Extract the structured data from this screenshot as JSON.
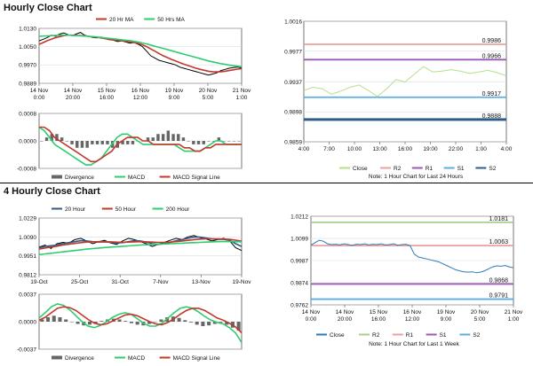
{
  "titles": {
    "hourly": "Hourly Close Chart",
    "four_hourly": "4 Hourly Close Chart"
  },
  "chart_data": [
    {
      "id": "hourly_price",
      "type": "line",
      "x_labels": [
        "14 Nov\n0:00",
        "14 Nov\n20:00",
        "15 Nov\n16:00",
        "16 Nov\n12:00",
        "19 Nov\n9:00",
        "20 Nov\n5:00",
        "21 Nov\n1:00"
      ],
      "y_ticks": [
        1.013,
        1.005,
        0.997,
        0.9889
      ],
      "y_tick_labels": [
        "1.0130",
        "1.0050",
        "0.9970",
        "0.9889"
      ],
      "ylim": [
        0.9889,
        1.013
      ],
      "legend": [
        "20 Hr MA",
        "50 Hrs MA"
      ],
      "series": [
        {
          "name": "Close",
          "color": "#000000",
          "values": [
            1.0075,
            1.0082,
            1.009,
            1.01,
            1.0095,
            1.0105,
            1.011,
            1.0102,
            1.0098,
            1.0105,
            1.0112,
            1.01,
            1.0095,
            1.009,
            1.0088,
            1.0092,
            1.0085,
            1.008,
            1.0078,
            1.0072,
            1.0075,
            1.007,
            1.0065,
            1.0068,
            1.006,
            1.005,
            1.003,
            1.001,
            1.0,
            0.999,
            0.9985,
            0.998,
            0.9975,
            0.997,
            0.996,
            0.9955,
            0.995,
            0.9945,
            0.994,
            0.9935,
            0.993,
            0.9925,
            0.993,
            0.9935,
            0.9945,
            0.995,
            0.9955,
            0.9958,
            0.996,
            0.9956
          ]
        },
        {
          "name": "20 Hr MA",
          "color": "#c0392b",
          "values": [
            1.006,
            1.0068,
            1.0076,
            1.0083,
            1.0089,
            1.0094,
            1.0098,
            1.01,
            1.01,
            1.0099,
            1.0098,
            1.0097,
            1.0095,
            1.0093,
            1.0091,
            1.0088,
            1.0085,
            1.0082,
            1.008,
            1.0078,
            1.0076,
            1.0074,
            1.0071,
            1.0068,
            1.0064,
            1.0058,
            1.005,
            1.004,
            1.003,
            1.002,
            1.001,
            1.0002,
            0.9994,
            0.9987,
            0.998,
            0.9973,
            0.9967,
            0.9961,
            0.9955,
            0.995,
            0.9946,
            0.9942,
            0.994,
            0.9939,
            0.994,
            0.9942,
            0.9945,
            0.9948,
            0.9951,
            0.9953
          ]
        },
        {
          "name": "50 Hrs MA",
          "color": "#2ecc71",
          "values": [
            1.0095,
            1.0096,
            1.0097,
            1.0098,
            1.0099,
            1.01,
            1.01,
            1.01,
            1.0099,
            1.0098,
            1.0097,
            1.0096,
            1.0095,
            1.0094,
            1.0092,
            1.009,
            1.0088,
            1.0086,
            1.0084,
            1.0082,
            1.008,
            1.0078,
            1.0076,
            1.0073,
            1.007,
            1.0066,
            1.0062,
            1.0057,
            1.0052,
            1.0047,
            1.0042,
            1.0037,
            1.0032,
            1.0027,
            1.0022,
            1.0017,
            1.0012,
            1.0007,
            1.0002,
            0.9997,
            0.9992,
            0.9987,
            0.9983,
            0.9979,
            0.9975,
            0.9972,
            0.9969,
            0.9966,
            0.9964,
            0.9962
          ]
        }
      ]
    },
    {
      "id": "hourly_macd",
      "type": "bar",
      "y_ticks": [
        0.0008,
        0.0,
        -0.0008
      ],
      "y_tick_labels": [
        "0.0008",
        "0.0000",
        "-0.0008"
      ],
      "ylim": [
        -0.0008,
        0.0008
      ],
      "legend": [
        "Divergence",
        "MACD",
        "MACD Signal Line"
      ],
      "divergence": [
        0.0,
        0.0001,
        0.0002,
        0.0002,
        0.0001,
        0.0,
        -0.0001,
        -0.0002,
        -0.0002,
        -0.0002,
        -0.0001,
        -0.0001,
        -0.0001,
        -0.0001,
        -0.0002,
        -0.0002,
        -0.0001,
        -0.0001,
        -0.0001,
        0.0,
        0.0,
        0.0001,
        0.0001,
        0.0002,
        0.0002,
        0.0003,
        0.0002,
        0.0002,
        0.0001,
        0.0,
        -0.0001,
        -0.0001,
        -0.0001,
        0.0,
        0.0,
        0.0001,
        0.0,
        0.0,
        0.0,
        0.0
      ],
      "series": [
        {
          "name": "MACD",
          "color": "#2ecc71",
          "values": [
            0.0004,
            0.0003,
            0.0001,
            -0.0001,
            -0.0002,
            -0.0003,
            -0.0004,
            -0.0005,
            -0.0006,
            -0.0007,
            -0.0007,
            -0.0006,
            -0.0005,
            -0.0003,
            -0.0001,
            0.0001,
            0.0002,
            0.0002,
            0.0001,
            0.0,
            -0.0001,
            -0.0001,
            -0.0001,
            -0.0001,
            -0.0001,
            -0.0001,
            -0.0001,
            -0.0002,
            -0.0003,
            -0.0003,
            -0.0003,
            -0.0003,
            -0.0002,
            -0.0001,
            0.0,
            0.0,
            -0.0001,
            -0.0001,
            -0.0001,
            -0.0001
          ]
        },
        {
          "name": "MACD Signal Line",
          "color": "#c0392b",
          "values": [
            0.0004,
            0.0004,
            0.0003,
            0.0001,
            0.0,
            -0.0001,
            -0.0002,
            -0.0003,
            -0.0004,
            -0.0005,
            -0.0006,
            -0.0006,
            -0.0005,
            -0.0004,
            -0.0003,
            -0.0001,
            0.0,
            0.0001,
            0.0001,
            0.0001,
            0.0,
            0.0,
            -0.0001,
            -0.0001,
            -0.0001,
            -0.0001,
            -0.0001,
            -0.0001,
            -0.0002,
            -0.0002,
            -0.0003,
            -0.0003,
            -0.0002,
            -0.0002,
            -0.0001,
            -0.0001,
            -0.0001,
            -0.0001,
            -0.0001,
            -0.0001
          ]
        }
      ]
    },
    {
      "id": "hourly_levels",
      "type": "line",
      "x_labels": [
        "4:00",
        "7:00",
        "10:00",
        "13:00",
        "16:00",
        "19:00",
        "22:00",
        "1:00",
        "4:00"
      ],
      "y_ticks": [
        1.0016,
        0.9977,
        0.9937,
        0.9898,
        0.9859
      ],
      "y_tick_labels": [
        "1.0016",
        "0.9977",
        "0.9937",
        "0.9898",
        "0.9859"
      ],
      "ylim": [
        0.9859,
        1.0016
      ],
      "legend": [
        "Close",
        "R2",
        "R1",
        "S1",
        "S2"
      ],
      "note": "Note: 1 Hour Chart for Last 24 Hours",
      "levels": [
        {
          "name": "R2",
          "value": 0.9986,
          "label": "0.9986",
          "color": "#e8a0a0"
        },
        {
          "name": "R1",
          "value": 0.9966,
          "label": "0.9966",
          "color": "#9b59b6"
        },
        {
          "name": "S1",
          "value": 0.9917,
          "label": "0.9917",
          "color": "#5dade2"
        },
        {
          "name": "S2",
          "value": 0.9888,
          "label": "0.9888",
          "color": "#2e5d8a"
        }
      ],
      "series": [
        {
          "name": "Close",
          "color": "#b5e08a",
          "values": [
            0.9926,
            0.993,
            0.9928,
            0.9921,
            0.9925,
            0.993,
            0.9933,
            0.9926,
            0.9918,
            0.9928,
            0.994,
            0.9937,
            0.9947,
            0.9957,
            0.995,
            0.9951,
            0.9953,
            0.9951,
            0.9948,
            0.995,
            0.9952,
            0.9949,
            0.9945
          ]
        }
      ]
    },
    {
      "id": "four_hourly_price",
      "type": "line",
      "x_labels": [
        "19-Oct",
        "25-Oct",
        "31-Oct",
        "7-Nov",
        "13-Nov",
        "19-Nov"
      ],
      "y_ticks": [
        1.0229,
        1.009,
        0.9951,
        0.9812
      ],
      "y_tick_labels": [
        "1.0229",
        "1.0090",
        "0.9951",
        "0.9812"
      ],
      "ylim": [
        0.9812,
        1.0229
      ],
      "legend": [
        "20 Hour",
        "50 Hour",
        "200 Hour"
      ],
      "series": [
        {
          "name": "Close",
          "color": "#000000",
          "values": [
            1.0015,
            1.003,
            1.0005,
            1.004,
            1.005,
            1.0045,
            1.007,
            1.008,
            1.006,
            1.004,
            1.0055,
            1.0065,
            1.0045,
            1.0035,
            1.006,
            1.008,
            1.007,
            1.0055,
            1.004,
            1.002,
            1.0035,
            1.005,
            1.0065,
            1.008,
            1.007,
            1.009,
            1.01,
            1.0085,
            1.0075,
            1.006,
            1.007,
            1.008,
            1.006,
            1.001,
            0.999
          ]
        },
        {
          "name": "20 Hour",
          "color": "#2e5d8a",
          "values": [
            1.001,
            1.002,
            1.0025,
            1.003,
            1.004,
            1.0048,
            1.0055,
            1.0062,
            1.006,
            1.0055,
            1.0052,
            1.0053,
            1.005,
            1.0045,
            1.0048,
            1.0055,
            1.0062,
            1.006,
            1.0052,
            1.004,
            1.0035,
            1.004,
            1.005,
            1.0062,
            1.007,
            1.008,
            1.0088,
            1.0088,
            1.0082,
            1.0075,
            1.0072,
            1.0072,
            1.0065,
            1.004,
            1.002
          ]
        },
        {
          "name": "50 Hour",
          "color": "#c0392b",
          "values": [
            1.0,
            1.0008,
            1.0015,
            1.0022,
            1.003,
            1.0036,
            1.0042,
            1.0048,
            1.0052,
            1.0054,
            1.0055,
            1.0055,
            1.0054,
            1.0052,
            1.0051,
            1.0052,
            1.0054,
            1.0055,
            1.0054,
            1.0052,
            1.005,
            1.005,
            1.0052,
            1.0056,
            1.006,
            1.0065,
            1.007,
            1.0074,
            1.0076,
            1.0076,
            1.0075,
            1.0074,
            1.0072,
            1.0066,
            1.0058
          ]
        },
        {
          "name": "200 Hour",
          "color": "#2ecc71",
          "values": [
            0.996,
            0.9965,
            0.997,
            0.9975,
            0.998,
            0.9985,
            0.999,
            0.9995,
            1.0,
            1.0004,
            1.0008,
            1.0012,
            1.0015,
            1.0018,
            1.0021,
            1.0024,
            1.0027,
            1.003,
            1.0032,
            1.0034,
            1.0036,
            1.0038,
            1.004,
            1.0042,
            1.0044,
            1.0046,
            1.0048,
            1.005,
            1.0052,
            1.0054,
            1.0055,
            1.0056,
            1.0056,
            1.0055,
            1.0054
          ]
        }
      ]
    },
    {
      "id": "four_hourly_macd",
      "type": "bar",
      "y_ticks": [
        0.0037,
        0.0,
        -0.0037
      ],
      "y_tick_labels": [
        "0.0037",
        "0.0000",
        "-0.0037"
      ],
      "ylim": [
        -0.0037,
        0.0037
      ],
      "legend": [
        "Divergence",
        "MACD",
        "MACD Signal Line"
      ],
      "divergence": [
        0.0003,
        0.0006,
        0.0008,
        0.0006,
        0.0003,
        0.0,
        -0.0003,
        -0.0005,
        -0.0004,
        -0.0002,
        0.0001,
        0.0003,
        0.0004,
        0.0003,
        0.0001,
        -0.0002,
        -0.0004,
        -0.0005,
        -0.0003,
        0.0,
        0.0003,
        0.0006,
        0.0007,
        0.0005,
        0.0002,
        -0.0001,
        -0.0004,
        -0.0006,
        -0.0005,
        -0.0003,
        -0.0001,
        -0.0004,
        -0.0008,
        -0.0012
      ],
      "series": [
        {
          "name": "MACD",
          "color": "#2ecc71",
          "values": [
            0.0005,
            0.0012,
            0.002,
            0.0024,
            0.0022,
            0.0016,
            0.0008,
            0.0,
            -0.0006,
            -0.0008,
            -0.0005,
            0.0,
            0.0006,
            0.001,
            0.0012,
            0.001,
            0.0004,
            -0.0002,
            -0.0006,
            -0.0006,
            -0.0002,
            0.0005,
            0.0012,
            0.0018,
            0.002,
            0.0018,
            0.0013,
            0.0007,
            0.0002,
            -0.0001,
            -0.0003,
            -0.0008,
            -0.0015,
            -0.0028
          ]
        },
        {
          "name": "MACD Signal Line",
          "color": "#c0392b",
          "values": [
            0.0002,
            0.0006,
            0.0012,
            0.0018,
            0.002,
            0.0019,
            0.0015,
            0.0009,
            0.0003,
            -0.0002,
            -0.0004,
            -0.0003,
            0.0001,
            0.0005,
            0.0009,
            0.001,
            0.0008,
            0.0004,
            0.0,
            -0.0003,
            -0.0004,
            -0.0001,
            0.0004,
            0.001,
            0.0015,
            0.0018,
            0.0018,
            0.0015,
            0.001,
            0.0005,
            0.0002,
            -0.0002,
            -0.0007,
            -0.0015
          ]
        }
      ]
    },
    {
      "id": "four_hourly_levels",
      "type": "line",
      "x_labels": [
        "14 Nov\n0:00",
        "14 Nov\n20:00",
        "15 Nov\n16:00",
        "16 Nov\n12:00",
        "19 Nov\n9:00",
        "20 Nov\n5:00",
        "21 Nov\n1:00"
      ],
      "y_ticks": [
        1.0212,
        1.0099,
        0.9987,
        0.9874,
        0.9762
      ],
      "y_tick_labels": [
        "1.0212",
        "1.0099",
        "0.9987",
        "0.9874",
        "0.9762"
      ],
      "ylim": [
        0.9762,
        1.0212
      ],
      "legend": [
        "Close",
        "R2",
        "R1",
        "S1",
        "S2"
      ],
      "note": "Note: 1 Hour Chart for Last 1 Week",
      "levels": [
        {
          "name": "R2",
          "value": 1.0181,
          "label": "1.0181",
          "color": "#a8d08d"
        },
        {
          "name": "R1",
          "value": 1.0063,
          "label": "1.0063",
          "color": "#e8a0a0"
        },
        {
          "name": "S1",
          "value": 0.9868,
          "label": "0.9868",
          "color": "#9b59b6"
        },
        {
          "name": "S2",
          "value": 0.9791,
          "label": "0.9791",
          "color": "#5dade2"
        }
      ],
      "series": [
        {
          "name": "Close",
          "color": "#2e7ab8",
          "values": [
            1.0065,
            1.0078,
            1.009,
            1.0085,
            1.0072,
            1.0068,
            1.007,
            1.0066,
            1.0072,
            1.0068,
            1.0064,
            1.007,
            1.0068,
            1.0072,
            1.0066,
            1.007,
            1.0068,
            1.0072,
            1.0066,
            1.0068,
            1.0072,
            1.0065,
            1.0068,
            1.007,
            1.0062,
            1.002,
            1.0005,
            1.0,
            0.9995,
            0.999,
            0.9985,
            0.998,
            0.997,
            0.996,
            0.995,
            0.994,
            0.9935,
            0.993,
            0.9928,
            0.993,
            0.9925,
            0.9928,
            0.9935,
            0.9945,
            0.9955,
            0.996,
            0.9958,
            0.9962,
            0.9955,
            0.995
          ]
        }
      ]
    }
  ]
}
